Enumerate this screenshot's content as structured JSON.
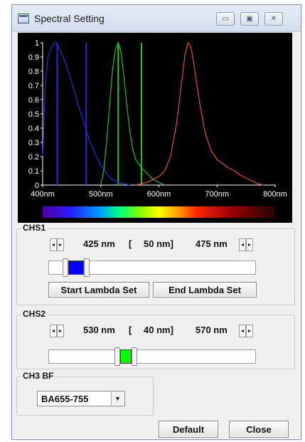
{
  "window": {
    "title": "Spectral Setting"
  },
  "chart_data": {
    "type": "line",
    "x_tick_labels": [
      "400nm",
      "500nm",
      "600nm",
      "700nm",
      "800nm"
    ],
    "y_tick_labels": [
      "1",
      "0.9",
      "0.8",
      "0.7",
      "0.6",
      "0.5",
      "0.4",
      "0.3",
      "0.2",
      "0.1",
      "0"
    ],
    "xlim": [
      400,
      800
    ],
    "ylim": [
      0,
      1
    ],
    "series": [
      {
        "color": "#2a2ad8",
        "x": [
          400,
          405,
          410,
          420,
          425,
          430,
          440,
          450,
          460,
          470,
          480,
          490,
          500,
          510,
          520,
          530,
          540,
          550
        ],
        "y": [
          0.2,
          0.75,
          0.92,
          1.0,
          0.99,
          0.95,
          0.85,
          0.72,
          0.58,
          0.45,
          0.32,
          0.22,
          0.14,
          0.08,
          0.04,
          0.02,
          0.01,
          0
        ]
      },
      {
        "color": "#22c422",
        "x": [
          500,
          505,
          510,
          515,
          520,
          525,
          530,
          535,
          540,
          545,
          550,
          555,
          560,
          570,
          580,
          590,
          600,
          610
        ],
        "y": [
          0,
          0.1,
          0.3,
          0.55,
          0.8,
          0.95,
          1.0,
          0.93,
          0.75,
          0.55,
          0.38,
          0.25,
          0.18,
          0.12,
          0.08,
          0.04,
          0.02,
          0
        ]
      },
      {
        "color": "#e0503a",
        "x": [
          560,
          570,
          580,
          590,
          600,
          610,
          620,
          630,
          640,
          645,
          650,
          655,
          660,
          670,
          680,
          690,
          700,
          710,
          720,
          730,
          740,
          750,
          760,
          770,
          780
        ],
        "y": [
          0,
          0.01,
          0.02,
          0.04,
          0.06,
          0.1,
          0.2,
          0.42,
          0.75,
          0.92,
          1.0,
          0.97,
          0.85,
          0.58,
          0.36,
          0.24,
          0.18,
          0.15,
          0.12,
          0.1,
          0.07,
          0.05,
          0.03,
          0.01,
          0
        ]
      }
    ],
    "markers": [
      {
        "x": 425,
        "color": "#2a2ad8"
      },
      {
        "x": 475,
        "color": "#2a2ad8"
      },
      {
        "x": 530,
        "color": "#22c422"
      },
      {
        "x": 570,
        "color": "#22c422"
      }
    ]
  },
  "chs1": {
    "label": "CHS1",
    "start": "425 nm",
    "bracket_open": "[",
    "width": "50 nm]",
    "end": "475 nm",
    "fill_color": "#0000ff",
    "start_button": "Start Lambda Set",
    "end_button": "End Lambda Set"
  },
  "chs2": {
    "label": "CHS2",
    "start": "530 nm",
    "bracket_open": "[",
    "width": "40 nm]",
    "end": "570 nm",
    "fill_color": "#00ff00"
  },
  "ch3": {
    "label": "CH3 BF",
    "selected": "BA655-755"
  },
  "footer": {
    "default_button": "Default",
    "close_button": "Close"
  },
  "icons": {
    "left": "◄",
    "right": "►",
    "down": "▼",
    "minimize": "▭",
    "maximize": "▣",
    "close": "✕"
  }
}
